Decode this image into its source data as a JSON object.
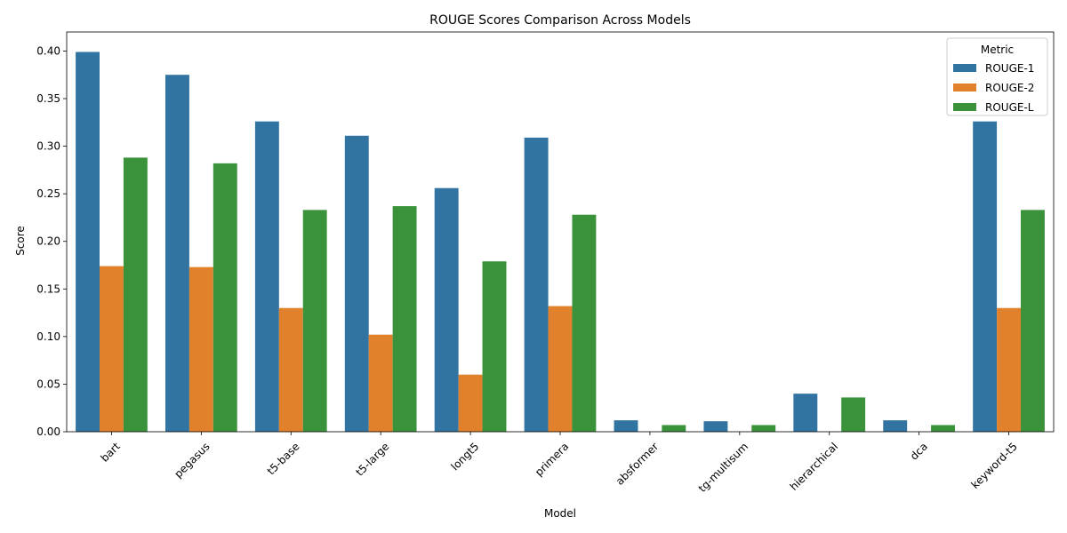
{
  "chart_data": {
    "type": "bar",
    "title": "ROUGE Scores Comparison Across Models",
    "xlabel": "Model",
    "ylabel": "Score",
    "ylim": [
      0,
      0.42
    ],
    "yticks": [
      "0.00",
      "0.05",
      "0.10",
      "0.15",
      "0.20",
      "0.25",
      "0.30",
      "0.35",
      "0.40"
    ],
    "grid": false,
    "legend": {
      "title": "Metric",
      "placement": "top-right"
    },
    "categories": [
      "bart",
      "pegasus",
      "t5-base",
      "t5-large",
      "longt5",
      "primera",
      "absformer",
      "tg-multisum",
      "hierarchical",
      "dca",
      "keyword-t5"
    ],
    "series": [
      {
        "name": "ROUGE-1",
        "color": "#3274a1",
        "values": [
          0.399,
          0.375,
          0.326,
          0.311,
          0.256,
          0.309,
          0.012,
          0.011,
          0.04,
          0.012,
          0.326
        ]
      },
      {
        "name": "ROUGE-2",
        "color": "#e1812c",
        "values": [
          0.174,
          0.173,
          0.13,
          0.102,
          0.06,
          0.132,
          0.0,
          0.0,
          0.0,
          0.0,
          0.13
        ]
      },
      {
        "name": "ROUGE-L",
        "color": "#3a923a",
        "values": [
          0.288,
          0.282,
          0.233,
          0.237,
          0.179,
          0.228,
          0.007,
          0.007,
          0.036,
          0.007,
          0.233
        ]
      }
    ]
  }
}
